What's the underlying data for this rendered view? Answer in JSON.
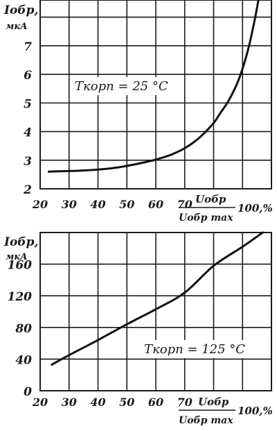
{
  "chart_data": [
    {
      "type": "line",
      "ylabel": "Iобр,",
      "yunit": "мкА",
      "xlabel_numerator": "Uобр",
      "xlabel_denominator": "Uобр max",
      "xlabel_suffix": "100,%",
      "annotation": "Tкорп = 25 °C",
      "xlim": [
        20,
        100
      ],
      "ylim": [
        2,
        8.6
      ],
      "xticks": [
        20,
        30,
        40,
        50,
        60,
        70
      ],
      "yticks": [
        2,
        3,
        4,
        5,
        6,
        7
      ],
      "grid": true,
      "series": [
        {
          "x": [
            23,
            30,
            35,
            40,
            45,
            50,
            55,
            60,
            65,
            70,
            75,
            80,
            82,
            85,
            88,
            90,
            92,
            94,
            95.5
          ],
          "y": [
            2.6,
            2.62,
            2.64,
            2.67,
            2.72,
            2.8,
            2.9,
            3.02,
            3.18,
            3.42,
            3.78,
            4.3,
            4.6,
            5.05,
            5.65,
            6.2,
            6.9,
            7.8,
            8.6
          ]
        }
      ]
    },
    {
      "type": "line",
      "ylabel": "Iобр,",
      "yunit": "мкА",
      "xlabel_numerator": "Uобр",
      "xlabel_denominator": "Uобр max",
      "xlabel_suffix": "100,%",
      "annotation": "Tкорп = 125 °C",
      "xlim": [
        20,
        100
      ],
      "ylim": [
        0,
        200
      ],
      "xticks": [
        20,
        30,
        40,
        50,
        60,
        70
      ],
      "yticks": [
        0,
        40,
        80,
        120,
        160
      ],
      "grid": true,
      "series": [
        {
          "x": [
            24,
            30,
            40,
            50,
            60,
            70,
            80,
            90,
            97
          ],
          "y": [
            33,
            45,
            64,
            84,
            103,
            124,
            158,
            182,
            200
          ]
        }
      ]
    }
  ]
}
